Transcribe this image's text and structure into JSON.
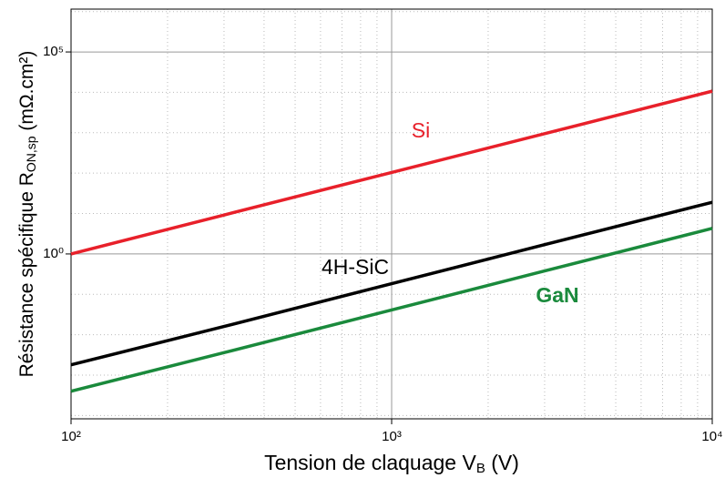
{
  "chart_data": {
    "type": "line",
    "x_label": {
      "text": "Tension de claquage V",
      "sub": "B",
      "unit": "(V)"
    },
    "y_label": {
      "text": "Résistance spécifique R",
      "sub": "ON,sp",
      "unit": "(mΩ.cm²)"
    },
    "x": [
      100,
      300,
      1000,
      3000,
      10000
    ],
    "series": [
      {
        "name": "Si",
        "color": "#e8202a",
        "values": [
          1,
          9.2,
          104,
          950,
          10700
        ]
      },
      {
        "name": "4H-SiC",
        "color": "#000000",
        "values": [
          0.0018,
          0.016,
          0.184,
          1.7,
          19
        ]
      },
      {
        "name": "GaN",
        "color": "#1a8a3c",
        "values": [
          0.0004,
          0.0036,
          0.041,
          0.38,
          4.3
        ]
      }
    ],
    "xscale": "log",
    "yscale": "log",
    "xlim": [
      100,
      10000
    ],
    "ylim": [
      8.3e-05,
      1150000
    ],
    "xticks": [
      {
        "value": 100,
        "label": "10²"
      },
      {
        "value": 1000,
        "label": "10³"
      },
      {
        "value": 10000,
        "label": "10⁴"
      }
    ],
    "yticks": [
      {
        "value": 1,
        "label": "10⁰"
      },
      {
        "value": 100000,
        "label": "10⁵"
      }
    ],
    "xminor": [
      200,
      300,
      400,
      500,
      600,
      700,
      800,
      900,
      2000,
      3000,
      4000,
      5000,
      6000,
      7000,
      8000,
      9000
    ],
    "yminor": [
      0.0001,
      0.001,
      0.01,
      0.1,
      10,
      100,
      1000,
      10000,
      1000000
    ],
    "grid": true
  }
}
